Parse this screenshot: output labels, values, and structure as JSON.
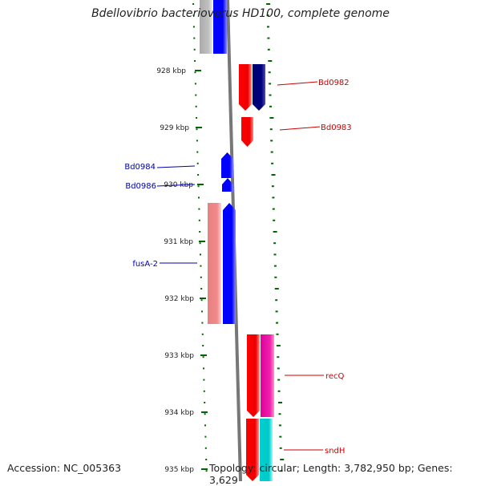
{
  "title": "Bdellovibrio bacteriovorus HD100, complete genome",
  "footer": {
    "accession": "Accession: NC_005363",
    "summary": "Topology: circular; Length: 3,782,950 bp; Genes: 3,629"
  },
  "ticks": [
    "928 kbp",
    "929 kbp",
    "930 kbp",
    "931 kbp",
    "932 kbp",
    "933 kbp",
    "934 kbp",
    "935 kbp"
  ],
  "gene_labels": {
    "Bd0982": "Bd0982",
    "Bd0983": "Bd0983",
    "Bd0984": "Bd0984",
    "Bd0986": "Bd0986",
    "fusA2": "fusA-2",
    "recQ": "recQ",
    "sndH": "sndH"
  },
  "colors": {
    "forward_label": "#cc0000",
    "reverse_label": "#0000aa",
    "tick": "#006600",
    "backbone": "#777777"
  }
}
